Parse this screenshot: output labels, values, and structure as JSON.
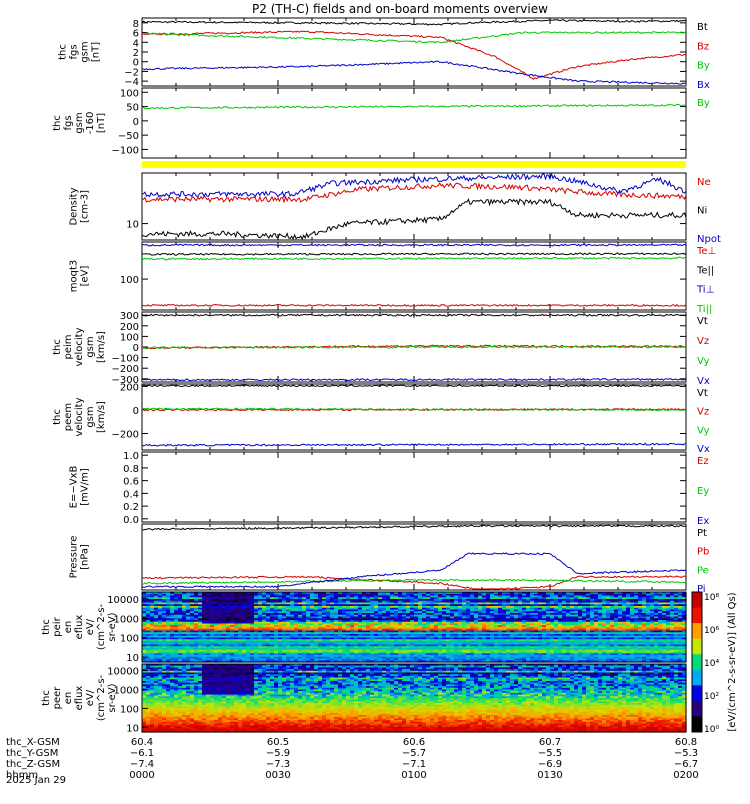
{
  "title": "P2 (TH-C) fields and on-board moments overview",
  "date_label": "2025 Jan 29",
  "colors": {
    "black": "#000000",
    "red": "#d40000",
    "green": "#00c800",
    "blue": "#0000c8",
    "yellow": "#ffff00"
  },
  "chart_data": [
    {
      "id": "fgs",
      "type": "line",
      "ylabel": [
        "thc",
        "fgs",
        "gsm",
        "[nT]"
      ],
      "ylim": [
        -5,
        9
      ],
      "yticks": [
        "8",
        "6",
        "4",
        "2",
        "0",
        "−2",
        "−4"
      ],
      "ytick_values": [
        8,
        6,
        4,
        2,
        0,
        -2,
        -4
      ],
      "series": [
        {
          "name": "Bt",
          "color": "black",
          "x": [
            0,
            0.3,
            0.55,
            0.6,
            0.75,
            0.9,
            1
          ],
          "y": [
            8.2,
            8.0,
            7.7,
            8.0,
            8.5,
            8.3,
            8.4
          ]
        },
        {
          "name": "Bz",
          "color": "red",
          "x": [
            0,
            0.3,
            0.55,
            0.65,
            0.72,
            0.8,
            0.9,
            1
          ],
          "y": [
            5.6,
            6.2,
            5.0,
            1.0,
            -3.5,
            -1,
            0.5,
            1.5
          ]
        },
        {
          "name": "By",
          "color": "green",
          "x": [
            0,
            0.3,
            0.55,
            0.7,
            1
          ],
          "y": [
            5.8,
            4.8,
            4.0,
            6.0,
            6.0
          ]
        },
        {
          "name": "Bx",
          "color": "blue",
          "x": [
            0,
            0.3,
            0.55,
            0.7,
            0.8,
            1
          ],
          "y": [
            -1.5,
            -1.0,
            0.0,
            -2.5,
            -4.0,
            -4.5
          ]
        }
      ]
    },
    {
      "id": "fgs160",
      "type": "line",
      "ylabel": [
        "thc",
        "fgs",
        "gsm",
        "-160",
        "[nT]"
      ],
      "ylim": [
        -130,
        115
      ],
      "yticks": [
        "100",
        "50",
        "0",
        "−50",
        "−100"
      ],
      "ytick_values": [
        100,
        50,
        0,
        -50,
        -100
      ],
      "series": [
        {
          "name": "By",
          "color": "green",
          "x": [
            0,
            1
          ],
          "y": [
            45,
            55
          ]
        }
      ]
    },
    {
      "id": "density",
      "type": "line",
      "ylabel": [
        "Density",
        "[cm-3]"
      ],
      "ylog": true,
      "ylim": [
        7,
        30
      ],
      "yticks": [
        "10"
      ],
      "ytick_values": [
        10
      ],
      "series": [
        {
          "name": "Ne",
          "color": "red",
          "x": [
            0,
            0.3,
            0.4,
            0.55,
            0.7,
            0.85,
            1
          ],
          "y": [
            17,
            17,
            21,
            23,
            22,
            19,
            18
          ]
        },
        {
          "name": "Ni",
          "color": "black",
          "x": [
            0,
            0.15,
            0.3,
            0.38,
            0.55,
            0.6,
            0.75,
            0.8,
            1
          ],
          "y": [
            8,
            8,
            7.5,
            10,
            11,
            16,
            16,
            12,
            12
          ]
        },
        {
          "name": "Npot",
          "color": "blue",
          "x": [
            0,
            0.28,
            0.35,
            0.5,
            0.75,
            0.88,
            0.95,
            1
          ],
          "y": [
            19,
            19,
            24,
            26,
            28,
            20,
            26,
            20
          ]
        }
      ]
    },
    {
      "id": "temp",
      "type": "line",
      "ylabel": [
        "moqt3",
        "[eV]"
      ],
      "ylim": [
        0,
        220
      ],
      "yticks": [
        "100"
      ],
      "ytick_values": [
        100
      ],
      "series": [
        {
          "name": "Te⊥",
          "color": "red",
          "x": [
            0,
            1
          ],
          "y": [
            15,
            15
          ]
        },
        {
          "name": "Te||",
          "color": "black",
          "x": [
            0,
            1
          ],
          "y": [
            180,
            182
          ]
        },
        {
          "name": "Ti⊥",
          "color": "blue",
          "x": [
            0,
            1
          ],
          "y": [
            210,
            210
          ]
        },
        {
          "name": "Ti||",
          "color": "green",
          "x": [
            0,
            1
          ],
          "y": [
            165,
            168
          ]
        }
      ]
    },
    {
      "id": "vi",
      "type": "line",
      "ylabel": [
        "thc",
        "peim",
        "velocity",
        "gsm",
        "[km/s]"
      ],
      "ylim": [
        -330,
        330
      ],
      "yticks": [
        "300",
        "200",
        "100",
        "0",
        "−100",
        "−200",
        "−300"
      ],
      "ytick_values": [
        300,
        200,
        100,
        0,
        -100,
        -200,
        -300
      ],
      "series": [
        {
          "name": "Vt",
          "color": "black",
          "x": [
            0,
            1
          ],
          "y": [
            300,
            300
          ]
        },
        {
          "name": "Vz",
          "color": "red",
          "x": [
            0,
            0.5,
            1
          ],
          "y": [
            -10,
            10,
            5
          ]
        },
        {
          "name": "Vy",
          "color": "green",
          "x": [
            0,
            1
          ],
          "y": [
            -5,
            0
          ]
        },
        {
          "name": "Vx",
          "color": "blue",
          "x": [
            0,
            1
          ],
          "y": [
            -310,
            -305
          ]
        }
      ]
    },
    {
      "id": "ve",
      "type": "line",
      "ylabel": [
        "thc",
        "peem",
        "velocity",
        "gsm",
        "[km/s]"
      ],
      "ylim": [
        -340,
        220
      ],
      "yticks": [
        "200",
        "0",
        "−200"
      ],
      "ytick_values": [
        200,
        0,
        -200
      ],
      "series": [
        {
          "name": "Vt",
          "color": "black",
          "x": [
            0,
            1
          ],
          "y": [
            205,
            205
          ]
        },
        {
          "name": "Vz",
          "color": "red",
          "x": [
            0,
            1
          ],
          "y": [
            0,
            5
          ]
        },
        {
          "name": "Vy",
          "color": "green",
          "x": [
            0,
            1
          ],
          "y": [
            10,
            0
          ]
        },
        {
          "name": "Vx",
          "color": "blue",
          "x": [
            0,
            1
          ],
          "y": [
            -300,
            -290
          ]
        }
      ]
    },
    {
      "id": "efield",
      "type": "line",
      "ylabel": [
        "E=−VxB",
        "[mV/m]"
      ],
      "ylim": [
        -0.05,
        1.05
      ],
      "yticks": [
        "1.0",
        "0.8",
        "0.6",
        "0.4",
        "0.2",
        "0.0"
      ],
      "ytick_values": [
        1,
        0.8,
        0.6,
        0.4,
        0.2,
        0
      ],
      "legend": [
        "Ez",
        "Ey",
        "Ex"
      ],
      "legend_colors": [
        "red",
        "green",
        "blue"
      ],
      "series": []
    },
    {
      "id": "pressure",
      "type": "line",
      "ylabel": [
        "Pressure",
        "[nPa]"
      ],
      "ylim": [
        0,
        1
      ],
      "yticks": [],
      "ytick_values": [],
      "series": [
        {
          "name": "Pt",
          "color": "black",
          "x": [
            0,
            0.3,
            0.6,
            1
          ],
          "y": [
            0.92,
            0.94,
            0.97,
            0.97
          ]
        },
        {
          "name": "Pb",
          "color": "red",
          "x": [
            0,
            0.3,
            0.55,
            0.62,
            0.75,
            0.8,
            1
          ],
          "y": [
            0.18,
            0.2,
            0.1,
            0.0,
            0.05,
            0.2,
            0.2
          ]
        },
        {
          "name": "Pe",
          "color": "green",
          "x": [
            0,
            0.2,
            0.5,
            0.7,
            1
          ],
          "y": [
            0.1,
            0.12,
            0.15,
            0.15,
            0.12
          ]
        },
        {
          "name": "Pi",
          "color": "blue",
          "x": [
            0,
            0.25,
            0.4,
            0.55,
            0.6,
            0.75,
            0.8,
            1
          ],
          "y": [
            0.05,
            0.05,
            0.2,
            0.3,
            0.55,
            0.55,
            0.25,
            0.3
          ]
        }
      ]
    },
    {
      "id": "peir",
      "type": "heatmap",
      "ylabel": [
        "thc",
        "peir",
        "en",
        "eflux",
        "eV/",
        "(cm^2-s-",
        "sr-eV)"
      ],
      "yticks": [
        "10000",
        "1000",
        "100",
        "10"
      ],
      "ytick_values": [
        4,
        3,
        2,
        1
      ]
    },
    {
      "id": "peer",
      "type": "heatmap",
      "ylabel": [
        "thc",
        "peer",
        "en",
        "eflux",
        "eV/",
        "(cm^2-s-",
        "sr-eV)"
      ],
      "yticks": [
        "10000",
        "1000",
        "100",
        "10"
      ],
      "ytick_values": [
        4,
        3,
        2,
        1
      ]
    }
  ],
  "colorbar": {
    "ticks": [
      "10⁸",
      "10⁶",
      "10⁴",
      "10²",
      "10⁰"
    ],
    "label": "[eV/(cm^2-s-sr-eV)] (All Qs)"
  },
  "xaxis": {
    "ticks": [
      0,
      0.25,
      0.5,
      0.75,
      1
    ],
    "rows": [
      {
        "label": "thc_X-GSM",
        "values": [
          "60.4",
          "60.5",
          "60.6",
          "60.7",
          "60.8"
        ]
      },
      {
        "label": "thc_Y-GSM",
        "values": [
          "−6.1",
          "−5.9",
          "−5.7",
          "−5.5",
          "−5.3"
        ]
      },
      {
        "label": "thc_Z-GSM",
        "values": [
          "−7.4",
          "−7.3",
          "−7.1",
          "−6.9",
          "−6.7"
        ]
      },
      {
        "label": "hhmm",
        "values": [
          "0000",
          "0030",
          "0100",
          "0130",
          "0200"
        ]
      }
    ]
  }
}
